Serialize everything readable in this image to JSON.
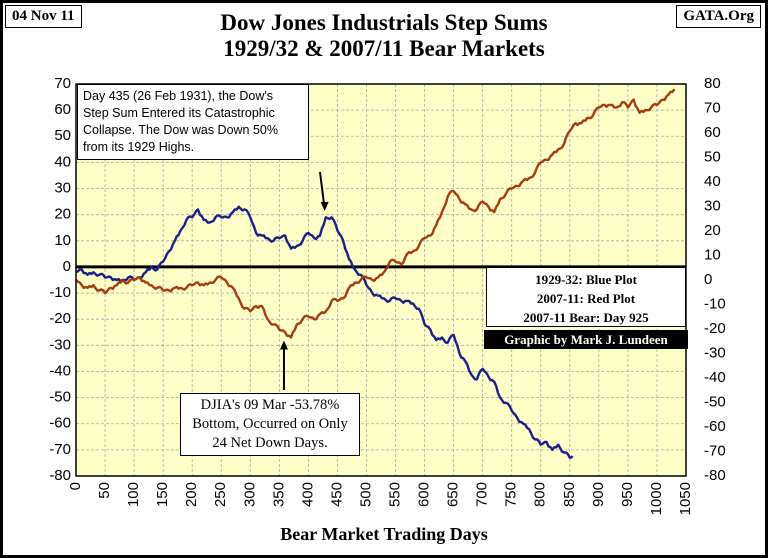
{
  "header": {
    "date": "04 Nov 11",
    "source": "GATA.Org",
    "title_line1": "Dow Jones Industrials Step Sums",
    "title_line2": "1929/32 & 2007/11 Bear Markets"
  },
  "annotations": {
    "top": [
      "Day 435 (26 Feb 1931), the Dow's",
      "Step Sum Entered its Catastrophic",
      "Collapse.  The Dow was Down 50%",
      "from its 1929 Highs."
    ],
    "bottom": [
      "DJIA's 09 Mar -53.78%",
      "Bottom, Occurred on Only",
      "24 Net Down Days."
    ]
  },
  "legend": {
    "line1": "1929-32: Blue Plot",
    "line2": "2007-11: Red Plot",
    "line3": "2007-11 Bear: Day 925",
    "credit": "Graphic by Mark J. Lundeen"
  },
  "chart_data": {
    "type": "line",
    "title": "Dow Jones Industrials Step Sums 1929/32 & 2007/11 Bear Markets",
    "xlabel": "Bear Market Trading Days",
    "ylabel": "",
    "xlim": [
      0,
      1050
    ],
    "ylim": [
      -80,
      70
    ],
    "x_ticks": [
      "0",
      "50",
      "100",
      "150",
      "200",
      "250",
      "300",
      "350",
      "400",
      "450",
      "500",
      "550",
      "600",
      "650",
      "700",
      "750",
      "800",
      "850",
      "900",
      "950",
      "1000",
      "1050"
    ],
    "y_ticks_left": [
      "70",
      "60",
      "50",
      "40",
      "30",
      "20",
      "10",
      "0",
      "-10",
      "-20",
      "-30",
      "-40",
      "-50",
      "-60",
      "-70",
      "-80"
    ],
    "y_ticks_right": [
      "80",
      "70",
      "60",
      "50",
      "40",
      "30",
      "20",
      "10",
      "0",
      "-10",
      "-20",
      "-30",
      "-40",
      "-50",
      "-60",
      "-70",
      "-80"
    ],
    "colors": {
      "blue": "#1a1f8c",
      "red": "#a83a12",
      "plot_bg": "#ffffc8",
      "grid": "#a9a9a9"
    },
    "series": [
      {
        "name": "1929-32: Blue Plot",
        "color": "#1a1f8c",
        "x": [
          0,
          10,
          20,
          30,
          40,
          50,
          60,
          70,
          80,
          90,
          100,
          110,
          120,
          130,
          140,
          150,
          160,
          170,
          180,
          190,
          200,
          210,
          220,
          230,
          240,
          250,
          260,
          270,
          280,
          290,
          300,
          310,
          320,
          330,
          340,
          350,
          360,
          370,
          380,
          390,
          400,
          410,
          420,
          430,
          440,
          450,
          460,
          470,
          480,
          490,
          500,
          510,
          520,
          530,
          540,
          550,
          560,
          570,
          580,
          590,
          600,
          610,
          620,
          630,
          640,
          650,
          660,
          670,
          680,
          690,
          700,
          710,
          720,
          730,
          740,
          750,
          760,
          770,
          780,
          790,
          800,
          810,
          820,
          830,
          840,
          850,
          855
        ],
        "values": [
          -2,
          -1,
          -3,
          -2,
          -3,
          -4,
          -4,
          -5,
          -5,
          -4,
          -5,
          -4,
          -2,
          0,
          -1,
          2,
          6,
          10,
          14,
          18,
          19,
          22,
          18,
          17,
          19,
          19,
          19,
          21,
          23,
          22,
          19,
          13,
          12,
          11,
          10,
          11,
          12,
          7,
          8,
          10,
          13,
          11,
          12,
          19,
          19,
          14,
          10,
          3,
          -1,
          -3,
          -7,
          -10,
          -11,
          -12,
          -13,
          -12,
          -13,
          -13,
          -14,
          -16,
          -22,
          -24,
          -28,
          -27,
          -29,
          -26,
          -33,
          -36,
          -41,
          -43,
          -39,
          -42,
          -44,
          -50,
          -52,
          -55,
          -58,
          -60,
          -62,
          -66,
          -68,
          -67,
          -70,
          -68,
          -71,
          -73,
          -73
        ]
      },
      {
        "name": "2007-11: Red Plot",
        "color": "#a83a12",
        "x": [
          0,
          10,
          20,
          30,
          40,
          50,
          60,
          70,
          80,
          90,
          100,
          110,
          120,
          130,
          140,
          150,
          160,
          170,
          180,
          190,
          200,
          210,
          220,
          230,
          240,
          250,
          260,
          270,
          280,
          290,
          300,
          310,
          320,
          330,
          340,
          350,
          360,
          370,
          380,
          390,
          400,
          410,
          420,
          430,
          440,
          450,
          460,
          470,
          480,
          490,
          500,
          510,
          520,
          530,
          540,
          550,
          560,
          570,
          580,
          590,
          600,
          610,
          620,
          630,
          640,
          650,
          660,
          670,
          680,
          690,
          700,
          710,
          720,
          730,
          740,
          750,
          760,
          770,
          780,
          790,
          800,
          810,
          820,
          830,
          840,
          850,
          860,
          870,
          880,
          890,
          900,
          910,
          920,
          930,
          940,
          950,
          960,
          970,
          980,
          990,
          1000,
          1010,
          1020,
          1030
        ],
        "values": [
          -5,
          -7,
          -8,
          -7,
          -9,
          -10,
          -8,
          -7,
          -5,
          -6,
          -5,
          -4,
          -6,
          -7,
          -8,
          -9,
          -9,
          -8,
          -8,
          -8,
          -7,
          -6,
          -7,
          -6,
          -5,
          -4,
          -6,
          -8,
          -12,
          -16,
          -17,
          -15,
          -15,
          -20,
          -22,
          -24,
          -25,
          -27,
          -22,
          -20,
          -19,
          -20,
          -18,
          -17,
          -13,
          -13,
          -12,
          -8,
          -6,
          -5,
          -4,
          -5,
          -4,
          -2,
          2,
          2,
          1,
          5,
          6,
          8,
          11,
          12,
          16,
          21,
          27,
          29,
          26,
          24,
          22,
          22,
          25,
          23,
          21,
          26,
          28,
          30,
          31,
          33,
          34,
          36,
          40,
          41,
          43,
          45,
          47,
          52,
          55,
          55,
          57,
          58,
          61,
          62,
          62,
          61,
          63,
          61,
          64,
          59,
          60,
          61,
          62,
          64,
          66,
          68
        ]
      }
    ],
    "legend": [
      "1929-32: Blue Plot",
      "2007-11: Red Plot"
    ],
    "grid": true
  }
}
